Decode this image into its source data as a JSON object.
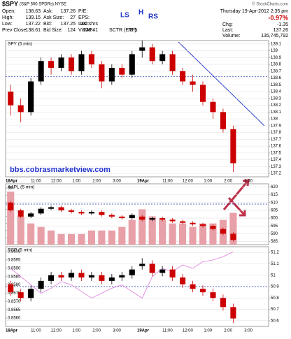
{
  "header": {
    "symbol": "$SPY",
    "name": "(S&P 500 SPDRs) NYSE",
    "copyright": "© StockCharts.com",
    "date": "Thursday 19-Apr-2012 2:35 pm",
    "change_pct": "-0.97%",
    "quote": [
      [
        "Open:",
        "138.63",
        "Ask:",
        "137.26",
        "P/E:"
      ],
      [
        "High:",
        "139.15",
        "Ask Size:",
        "27",
        "EPS:"
      ],
      [
        "Low:",
        "137.22",
        "Bid:",
        "137.25",
        "Last:",
        "100 shrs"
      ],
      [
        "Prev Close:",
        "138.61",
        "Bid Size:",
        "124",
        "VWAP:",
        "138.41",
        "SCTR (ETF):",
        "78.5"
      ]
    ],
    "right": [
      [
        "Chg:",
        "-1.35"
      ],
      [
        "Last:",
        "137.26"
      ],
      [
        "Volume:",
        "135,745,792"
      ]
    ],
    "annotations": [
      "LS",
      "H",
      "RS",
      "bbs.cobrasmarketview.com"
    ]
  },
  "chart_data": [
    {
      "type": "candlestick",
      "title": "SPY (5 min)",
      "categories": [
        "18Apr",
        null,
        null,
        "11:00",
        null,
        "12:00",
        null,
        "1:00",
        null,
        "2:00",
        null,
        "3:00",
        null,
        "19Apr",
        null,
        null,
        "11:00",
        null,
        "12:00",
        null,
        "1:00",
        null,
        "2:00",
        null,
        "3:00",
        null
      ],
      "open": [
        138.4,
        138.2,
        138.1,
        138.55,
        138.85,
        138.75,
        138.9,
        138.7,
        138.95,
        138.8,
        138.55,
        138.75,
        138.65,
        139.0,
        139.05,
        138.85,
        138.95,
        138.7,
        138.55,
        138.5,
        138.25,
        138.1,
        137.85,
        null,
        null,
        null
      ],
      "high": [
        138.5,
        138.3,
        138.6,
        138.9,
        138.9,
        138.95,
        138.95,
        139.0,
        139.0,
        138.85,
        138.8,
        138.8,
        139.0,
        139.15,
        139.1,
        139.0,
        139.0,
        138.75,
        138.65,
        138.55,
        138.3,
        138.15,
        137.9,
        null,
        null,
        null
      ],
      "low": [
        138.05,
        137.95,
        138.05,
        138.5,
        138.65,
        138.7,
        138.65,
        138.65,
        138.75,
        138.45,
        138.5,
        138.6,
        138.6,
        138.9,
        138.8,
        138.8,
        138.65,
        138.5,
        138.4,
        138.2,
        138.0,
        137.8,
        137.22,
        null,
        null,
        null
      ],
      "close": [
        138.2,
        138.1,
        138.55,
        138.85,
        138.75,
        138.9,
        138.7,
        138.95,
        138.8,
        138.55,
        138.75,
        138.65,
        138.95,
        139.05,
        138.85,
        138.95,
        138.7,
        138.55,
        138.5,
        138.25,
        138.1,
        137.85,
        137.35,
        null,
        null,
        null
      ],
      "up_color": "#000000",
      "down_color": "#cc0000",
      "reference_line": 138.62,
      "ylim": [
        137.15,
        139.15
      ],
      "yticks": [
        137.2,
        137.3,
        137.4,
        137.5,
        137.6,
        137.7,
        137.8,
        137.9,
        138,
        138.1,
        138.2,
        138.3,
        138.4,
        138.5,
        138.6,
        138.7,
        138.8,
        138.9,
        139,
        139.1
      ],
      "grid": true
    },
    {
      "type": "candlestick",
      "title": "AAPL (5 min)",
      "open": [
        610,
        605,
        601,
        603,
        606,
        607,
        605,
        604,
        603,
        604,
        602,
        601,
        600,
        601,
        599,
        600,
        599,
        598,
        597,
        596,
        595,
        593,
        590,
        null,
        null,
        null
      ],
      "high": [
        611,
        606,
        604,
        607,
        608,
        608,
        606,
        605,
        605,
        605,
        603,
        602,
        603,
        602,
        601,
        601,
        600,
        599,
        598,
        597,
        596,
        594,
        591,
        null,
        null,
        null
      ],
      "low": [
        604,
        600,
        600,
        602,
        605,
        604,
        603,
        602,
        602,
        601,
        600,
        599,
        599,
        598,
        598,
        598,
        597,
        596,
        595,
        594,
        592,
        589,
        585,
        null,
        null,
        null
      ],
      "close": [
        605,
        601,
        603,
        606,
        607,
        605,
        604,
        603,
        604,
        602,
        601,
        600,
        602,
        599,
        600,
        599,
        598,
        597,
        596,
        595,
        593,
        590,
        586,
        null,
        null,
        null
      ],
      "up_color": "#000000",
      "down_color": "#cc0000",
      "reference_line": 609,
      "volume": [
        7500000,
        4000000,
        3000000,
        2500000,
        2000000,
        1500000,
        1500000,
        1500000,
        2000000,
        2000000,
        2000000,
        2500000,
        3500000,
        5000000,
        4000000,
        3500000,
        3000000,
        3000000,
        2500000,
        3000000,
        3000000,
        3500000,
        4500000,
        null,
        null,
        null
      ],
      "volume_color": "#e8a0a8",
      "ylim": [
        583,
        622
      ],
      "yticks": [
        585,
        590,
        595,
        600,
        605,
        610,
        615,
        620
      ],
      "y2lim": [
        0,
        8600000
      ],
      "y2ticks": [
        {
          "value": 1000000,
          "label": "1M"
        },
        {
          "value": 2000000,
          "label": "2M"
        },
        {
          "value": 3000000,
          "label": "3M"
        },
        {
          "value": 4000000,
          "label": "4M"
        },
        {
          "value": 5000000,
          "label": "5M"
        },
        {
          "value": 6000000,
          "label": "6M"
        },
        {
          "value": 7000000,
          "label": "7M"
        },
        {
          "value": 8000000,
          "label": "8M"
        }
      ],
      "grid": true
    },
    {
      "type": "candlestick",
      "title": "RSP (5 min)",
      "categories": [
        "18Apr",
        null,
        null,
        "11:00",
        null,
        "12:00",
        null,
        "1:00",
        null,
        "2:00",
        null,
        "3:00",
        null,
        "19Apr",
        null,
        null,
        "11:00",
        null,
        "12:00",
        null,
        "1:00",
        null,
        "2:00",
        null,
        "3:00",
        null
      ],
      "open": [
        50.92,
        50.85,
        50.8,
        50.88,
        50.95,
        51.0,
        50.98,
        51.02,
        50.98,
        51.0,
        50.95,
        50.98,
        51.0,
        51.08,
        51.1,
        51.02,
        51.05,
        50.98,
        50.92,
        50.88,
        50.85,
        50.8,
        50.72,
        null,
        null,
        null
      ],
      "high": [
        50.95,
        50.88,
        50.91,
        50.98,
        51.03,
        51.03,
        51.05,
        51.05,
        51.03,
        51.03,
        51.01,
        51.03,
        51.08,
        51.15,
        51.13,
        51.08,
        51.08,
        51.01,
        50.95,
        50.91,
        50.88,
        50.83,
        50.75,
        null,
        null,
        null
      ],
      "low": [
        50.82,
        50.77,
        50.77,
        50.85,
        50.92,
        50.95,
        50.95,
        50.95,
        50.95,
        50.92,
        50.92,
        50.95,
        50.97,
        51.05,
        50.99,
        50.99,
        50.95,
        50.89,
        50.85,
        50.82,
        50.77,
        50.69,
        50.58,
        null,
        null,
        null
      ],
      "close": [
        50.85,
        50.8,
        50.88,
        50.95,
        51.0,
        50.98,
        51.02,
        50.98,
        51.0,
        50.95,
        50.98,
        51.0,
        51.05,
        51.1,
        51.02,
        51.05,
        50.98,
        50.92,
        50.88,
        50.85,
        50.8,
        50.72,
        50.62,
        null,
        null,
        null
      ],
      "up_color": "#000000",
      "down_color": "#cc0000",
      "reference_line": 50.9,
      "ratio": [
        0.859,
        0.8585,
        0.858,
        0.8575,
        0.8578,
        0.8582,
        0.858,
        0.8576,
        0.8572,
        0.8575,
        0.8578,
        0.858,
        0.8576,
        0.8572,
        0.8585,
        0.859,
        0.8588,
        0.8592,
        0.859,
        0.8594,
        0.8595,
        0.8597,
        0.86,
        null,
        null,
        null
      ],
      "ratio_color": "#e07ae0",
      "ylim": [
        50.55,
        51.25
      ],
      "yticks": [
        50.6,
        50.7,
        50.8,
        50.9,
        51,
        51.1,
        51.2
      ],
      "y2lim": [
        0.8555,
        0.8603
      ],
      "y2ticks": [
        {
          "value": 0.856,
          "label": "0.8560"
        },
        {
          "value": 0.8565,
          "label": "0.8565"
        },
        {
          "value": 0.857,
          "label": "0.8570"
        },
        {
          "value": 0.8575,
          "label": "0.8575"
        },
        {
          "value": 0.858,
          "label": "0.8580"
        },
        {
          "value": 0.8585,
          "label": "0.8585"
        },
        {
          "value": 0.859,
          "label": "0.8590"
        },
        {
          "value": 0.8595,
          "label": "0.8595"
        },
        {
          "value": 0.86,
          "label": "0.8600"
        }
      ],
      "grid": true
    }
  ]
}
